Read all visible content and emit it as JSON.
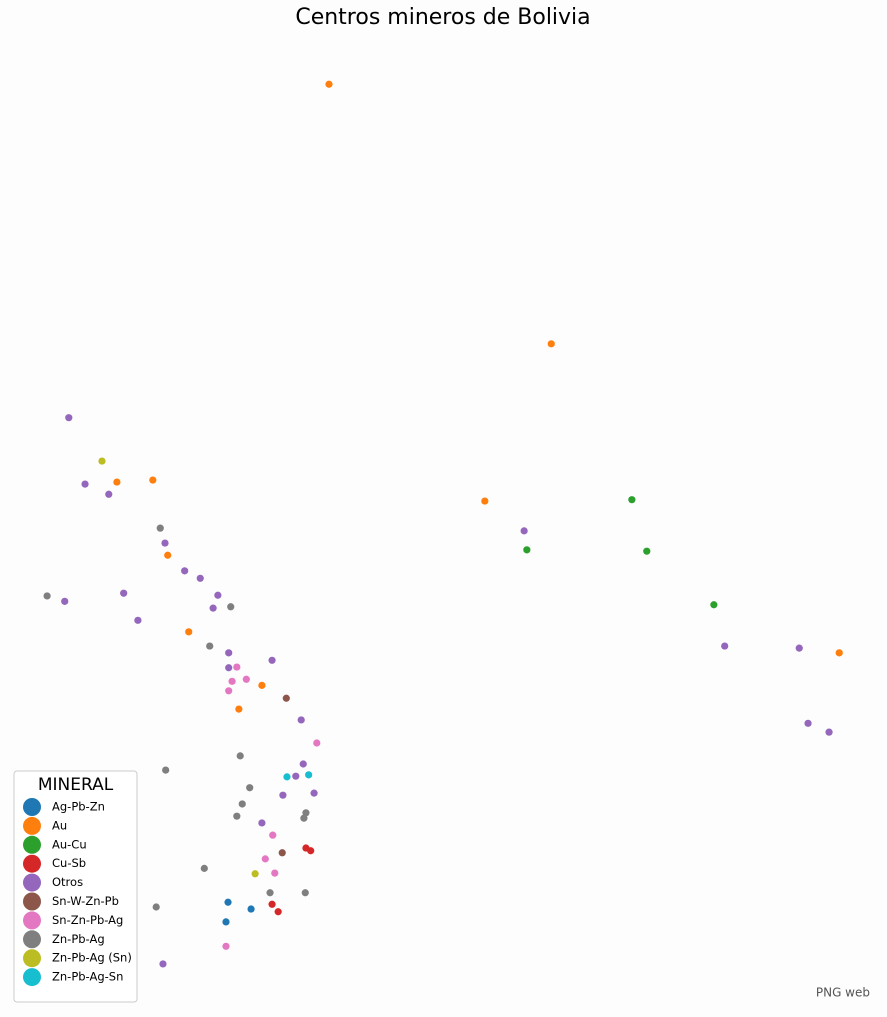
{
  "chart_data": {
    "type": "scatter",
    "title": "Centros mineros de Bolivia",
    "source": "PNG web",
    "legend_title": "MINERAL",
    "legend_loc": "lower left",
    "xlim": [
      -69.8,
      -57.3
    ],
    "ylim": [
      -23.2,
      -9.3
    ],
    "series": [
      {
        "name": "Ag-Pb-Zn",
        "color": "#1f77b4",
        "x": [
          -66.73,
          -66.76,
          -66.39
        ],
        "values": [
          -21.61,
          -21.9,
          -21.71
        ]
      },
      {
        "name": "Au",
        "color": "#ff7f0e",
        "x": [
          -65.24,
          -61.96,
          -68.37,
          -67.84,
          -62.94,
          -67.62,
          -67.31,
          -66.23,
          -66.57,
          -57.71
        ],
        "values": [
          -9.54,
          -13.37,
          -15.41,
          -15.38,
          -15.69,
          -16.49,
          -17.62,
          -18.41,
          -18.76,
          -17.93
        ]
      },
      {
        "name": "Au-Cu",
        "color": "#2ca02c",
        "x": [
          -60.77,
          -62.32,
          -60.55,
          -59.56
        ],
        "values": [
          -15.67,
          -16.41,
          -16.43,
          -17.22
        ]
      },
      {
        "name": "Cu-Sb",
        "color": "#d62728",
        "x": [
          -65.58,
          -65.51,
          -66.08,
          -65.99
        ],
        "values": [
          -20.81,
          -20.85,
          -21.64,
          -21.75
        ]
      },
      {
        "name": "Otros",
        "color": "#9467bd",
        "x": [
          -69.08,
          -68.84,
          -68.49,
          -62.36,
          -67.66,
          -67.37,
          -67.14,
          -68.27,
          -66.88,
          -69.14,
          -66.95,
          -68.06,
          -66.72,
          -59.4,
          -58.3,
          -66.08,
          -66.72,
          -65.65,
          -58.17,
          -57.86,
          -65.62,
          -65.73,
          -65.46,
          -65.92,
          -66.23,
          -67.69
        ],
        "values": [
          -14.46,
          -15.44,
          -15.59,
          -16.13,
          -16.31,
          -16.72,
          -16.83,
          -17.05,
          -17.08,
          -17.17,
          -17.27,
          -17.45,
          -17.93,
          -17.83,
          -17.86,
          -18.04,
          -18.15,
          -18.92,
          -18.97,
          -19.1,
          -19.57,
          -19.75,
          -20.0,
          -20.03,
          -20.44,
          -22.52
        ]
      },
      {
        "name": "Sn-W-Zn-Pb",
        "color": "#8c564b",
        "x": [
          -65.87,
          -65.93
        ],
        "values": [
          -18.6,
          -20.88
        ]
      },
      {
        "name": "Sn-Zn-Pb-Ag",
        "color": "#e377c2",
        "x": [
          -66.6,
          -66.67,
          -66.46,
          -66.72,
          -65.42,
          -66.07,
          -66.18,
          -66.04,
          -66.76
        ],
        "values": [
          -18.14,
          -18.35,
          -18.32,
          -18.49,
          -19.26,
          -20.62,
          -20.97,
          -21.18,
          -22.26
        ]
      },
      {
        "name": "Zn-Pb-Ag",
        "color": "#7f7f7f",
        "x": [
          -67.73,
          -69.4,
          -66.69,
          -67.0,
          -66.55,
          -67.65,
          -66.41,
          -66.52,
          -66.6,
          -65.58,
          -65.61,
          -67.08,
          -66.11,
          -65.59,
          -67.79
        ],
        "values": [
          -16.09,
          -17.09,
          -17.25,
          -17.83,
          -19.45,
          -19.66,
          -19.92,
          -20.16,
          -20.34,
          -20.29,
          -20.37,
          -21.11,
          -21.47,
          -21.47,
          -21.68
        ]
      },
      {
        "name": "Zn-Pb-Ag (Sn)",
        "color": "#bcbd22",
        "x": [
          -68.59,
          -66.33
        ],
        "values": [
          -15.1,
          -21.19
        ]
      },
      {
        "name": "Zn-Pb-Ag-Sn",
        "color": "#17becf",
        "x": [
          -65.86,
          -65.54
        ],
        "values": [
          -19.76,
          -19.73
        ]
      }
    ]
  }
}
